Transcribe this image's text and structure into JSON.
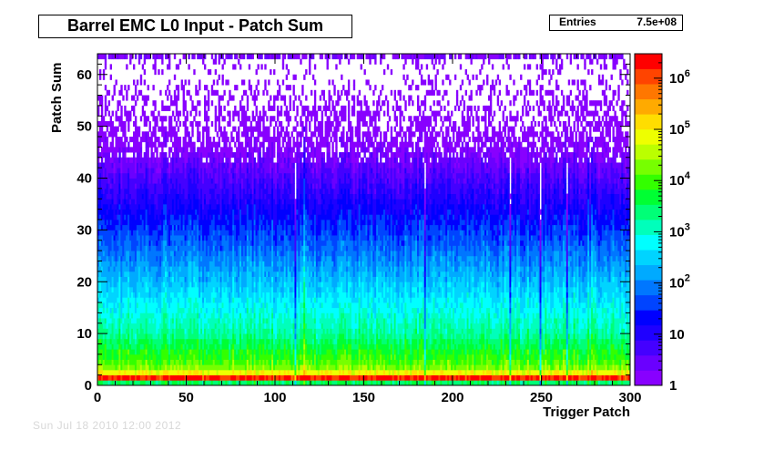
{
  "title": "Barrel EMC L0 Input - Patch Sum",
  "stats": {
    "label": "Entries",
    "value": "7.5e+08"
  },
  "timestamp": "Sun Jul 18 2010 12:00 2012",
  "chart_data": {
    "type": "heatmap",
    "xlabel": "Trigger Patch",
    "ylabel": "Patch Sum",
    "xlim": [
      0,
      300
    ],
    "ylim": [
      0,
      64
    ],
    "x_ticks": [
      0,
      50,
      100,
      150,
      200,
      250,
      300
    ],
    "y_ticks": [
      0,
      10,
      20,
      30,
      40,
      50,
      60
    ],
    "x_bins": 300,
    "y_bins": 64,
    "z_scale": "log",
    "z_range": [
      1,
      3000000
    ],
    "z_ticks": [
      {
        "value": 1,
        "label": "1"
      },
      {
        "value": 10,
        "label": "10"
      },
      {
        "value": 100,
        "label": "10",
        "exp": "2"
      },
      {
        "value": 1000,
        "label": "10",
        "exp": "3"
      },
      {
        "value": 10000,
        "label": "10",
        "exp": "4"
      },
      {
        "value": 100000,
        "label": "10",
        "exp": "5"
      },
      {
        "value": 1000000,
        "label": "10",
        "exp": "6"
      }
    ],
    "palette": [
      "#8800ff",
      "#6a00ff",
      "#4400ff",
      "#1f00ff",
      "#0000ff",
      "#0044ff",
      "#0077ff",
      "#00aaff",
      "#00d4ff",
      "#00ffff",
      "#00ffbb",
      "#00ff77",
      "#00ff33",
      "#33ff00",
      "#77ff00",
      "#bbff00",
      "#eeff00",
      "#ffdd00",
      "#ffaa00",
      "#ff7700",
      "#ff4400",
      "#ff0000"
    ],
    "profile": {
      "row0_log10": 3.5,
      "row1_log10": 6.2,
      "row2_log10": 4.9,
      "low_rows_log10": [
        4.3,
        4.1,
        3.9,
        3.8,
        3.6,
        3.5,
        3.3,
        3.2
      ],
      "decay_per_row_log10": 0.085,
      "empty_threshold_row": 42
    },
    "hot_columns": [
      116,
      276,
      278
    ],
    "dead_columns": [
      111,
      184,
      232,
      249,
      264
    ],
    "overflow_row": 63
  }
}
